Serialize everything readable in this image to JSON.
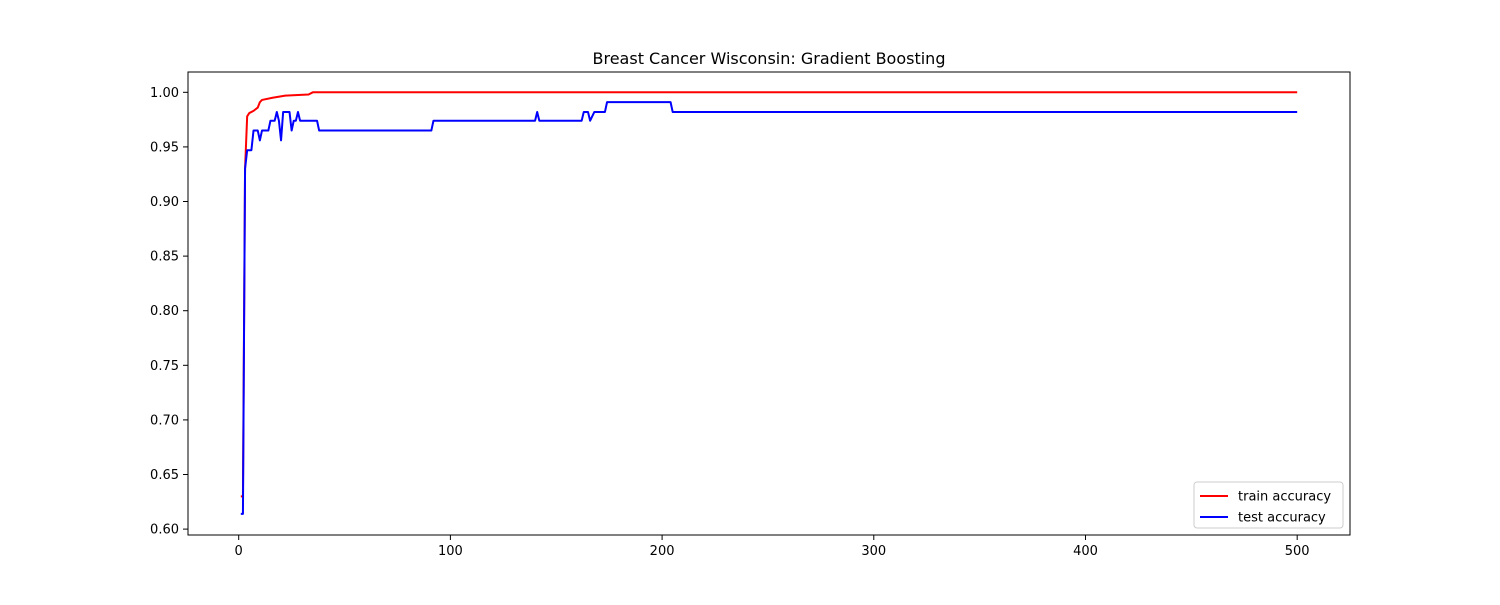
{
  "chart_data": {
    "type": "line",
    "title": "Breast Cancer Wisconsin: Gradient Boosting",
    "xlabel": "",
    "ylabel": "",
    "xlim": [
      -23.95,
      524.95
    ],
    "ylim": [
      0.5946,
      1.0186
    ],
    "x_ticks": [
      0,
      100,
      200,
      300,
      400,
      500
    ],
    "y_ticks": [
      0.6,
      0.65,
      0.7,
      0.75,
      0.8,
      0.85,
      0.9,
      0.95,
      1.0
    ],
    "legend_position": "lower right",
    "grid": false,
    "series": [
      {
        "name": "train accuracy",
        "color": "#ff0000",
        "step_points": [
          [
            1,
            0.63
          ],
          [
            2,
            0.63
          ],
          [
            3,
            0.93
          ],
          [
            4,
            0.978
          ],
          [
            5,
            0.981
          ],
          [
            7,
            0.983
          ],
          [
            9,
            0.986
          ],
          [
            10,
            0.991
          ],
          [
            11,
            0.993
          ],
          [
            16,
            0.995
          ],
          [
            22,
            0.997
          ],
          [
            33,
            0.998
          ],
          [
            35,
            1.0
          ],
          [
            500,
            1.0
          ]
        ]
      },
      {
        "name": "test accuracy",
        "color": "#0000ff",
        "step_points": [
          [
            1,
            0.614
          ],
          [
            2,
            0.614
          ],
          [
            3,
            0.93
          ],
          [
            4,
            0.947
          ],
          [
            6,
            0.947
          ],
          [
            7,
            0.965
          ],
          [
            9,
            0.965
          ],
          [
            10,
            0.956
          ],
          [
            11,
            0.965
          ],
          [
            14,
            0.965
          ],
          [
            15,
            0.974
          ],
          [
            17,
            0.974
          ],
          [
            18,
            0.982
          ],
          [
            19,
            0.974
          ],
          [
            20,
            0.956
          ],
          [
            21,
            0.982
          ],
          [
            24,
            0.982
          ],
          [
            25,
            0.965
          ],
          [
            26,
            0.974
          ],
          [
            27,
            0.974
          ],
          [
            28,
            0.982
          ],
          [
            29,
            0.974
          ],
          [
            37,
            0.974
          ],
          [
            38,
            0.965
          ],
          [
            91,
            0.965
          ],
          [
            92,
            0.974
          ],
          [
            140,
            0.974
          ],
          [
            141,
            0.982
          ],
          [
            142,
            0.974
          ],
          [
            162,
            0.974
          ],
          [
            163,
            0.982
          ],
          [
            165,
            0.982
          ],
          [
            166,
            0.974
          ],
          [
            168,
            0.982
          ],
          [
            173,
            0.982
          ],
          [
            174,
            0.991
          ],
          [
            204,
            0.991
          ],
          [
            205,
            0.982
          ],
          [
            500,
            0.982
          ]
        ]
      }
    ]
  }
}
